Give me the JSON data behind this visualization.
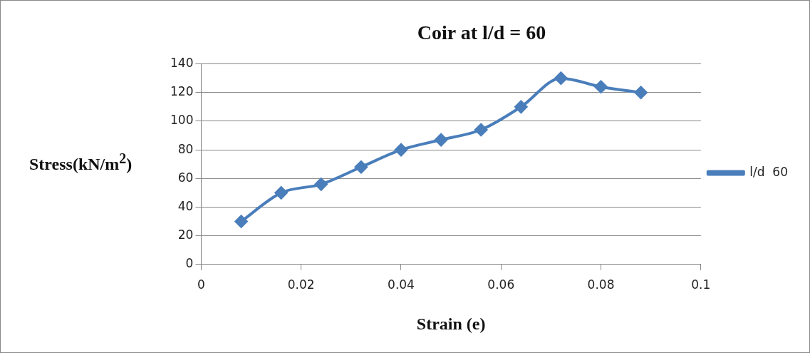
{
  "chart_data": {
    "type": "line",
    "title": "Coir at l/d = 60",
    "xlabel": "Strain (e)",
    "ylabel": "Stress(kN/m$^{2}$)",
    "x": [
      0.008,
      0.016,
      0.024,
      0.032,
      0.04,
      0.048,
      0.056,
      0.064,
      0.072,
      0.08,
      0.088
    ],
    "series": [
      {
        "name": "l/d  60",
        "color": "#4a7ebb",
        "values": [
          30,
          50,
          56,
          68,
          80,
          87,
          94,
          110,
          130,
          124,
          120
        ]
      }
    ],
    "xlim": [
      0,
      0.1
    ],
    "xticks": [
      0,
      0.02,
      0.04,
      0.06,
      0.08,
      0.1
    ],
    "ylim": [
      0,
      140
    ],
    "yticks": [
      0,
      20,
      40,
      60,
      80,
      100,
      120,
      140
    ],
    "grid": "y",
    "legend": "right",
    "marker": "diamond",
    "line_style": "solid"
  }
}
